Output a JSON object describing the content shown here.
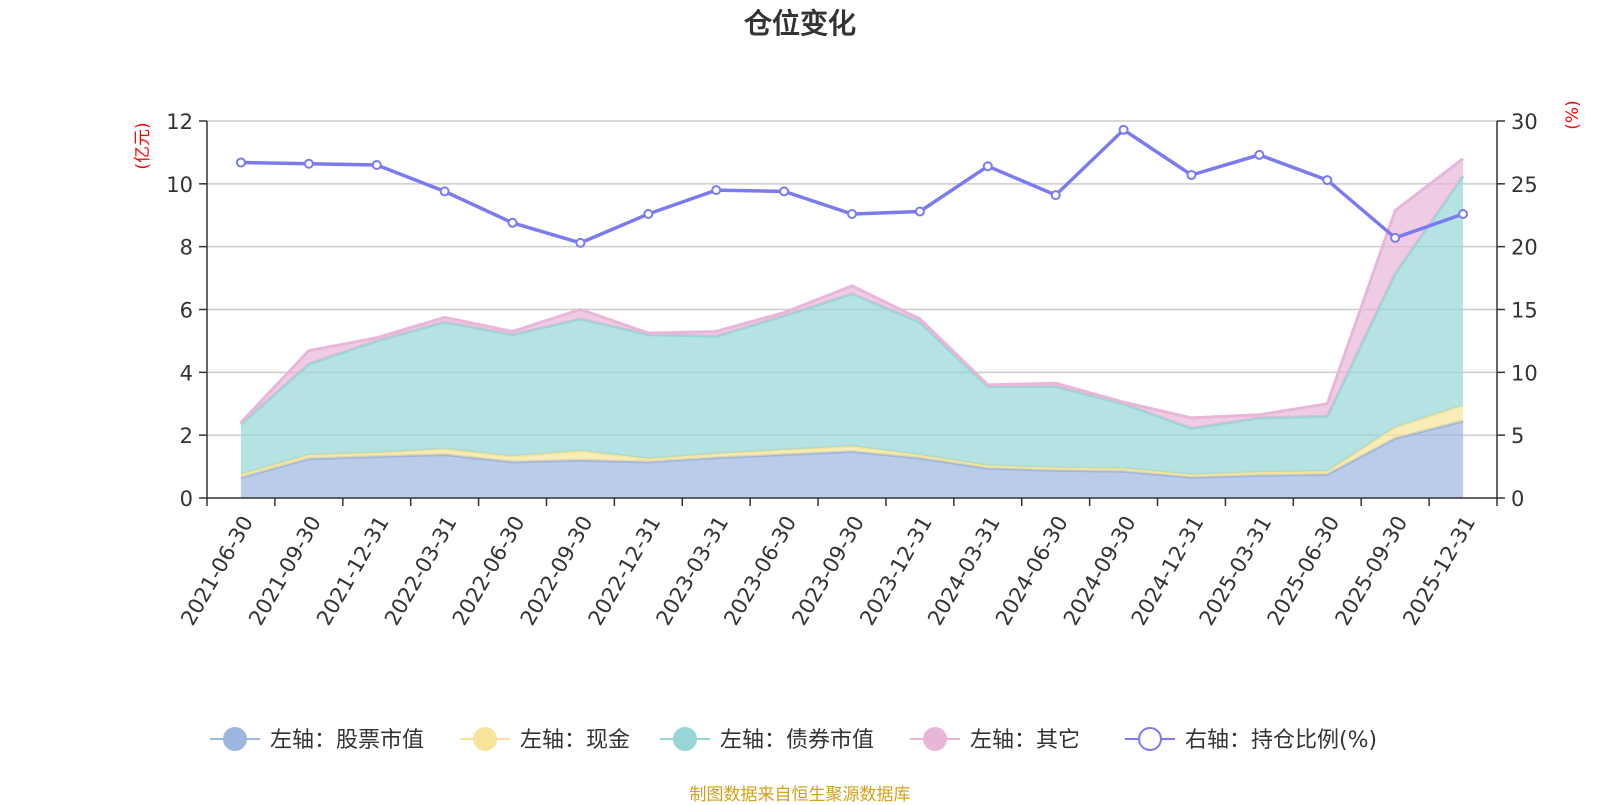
{
  "title": "仓位变化",
  "source_note": "制图数据来自恒生聚源数据库",
  "chart_data": {
    "type": "area",
    "title": "仓位变化",
    "categories": [
      "2021-06-30",
      "2021-09-30",
      "2021-12-31",
      "2022-03-31",
      "2022-06-30",
      "2022-09-30",
      "2022-12-31",
      "2023-03-31",
      "2023-06-30",
      "2023-09-30",
      "2023-12-31",
      "2024-03-31",
      "2024-06-30",
      "2024-09-30",
      "2024-12-31",
      "2025-03-31",
      "2025-06-30",
      "2025-09-30",
      "2025-12-31"
    ],
    "left_axis": {
      "unit_label": "(亿元)",
      "ylim": [
        0,
        12
      ],
      "ticks": [
        0,
        2,
        4,
        6,
        8,
        10,
        12
      ]
    },
    "right_axis": {
      "unit_label": "(%)",
      "ylim": [
        0,
        30
      ],
      "ticks": [
        0,
        5,
        10,
        15,
        20,
        25,
        30
      ]
    },
    "stacked_series": [
      {
        "name": "左轴：股票市值",
        "color": "#9db6e0",
        "values": [
          0.65,
          1.25,
          1.32,
          1.38,
          1.15,
          1.2,
          1.15,
          1.28,
          1.38,
          1.48,
          1.27,
          0.95,
          0.88,
          0.85,
          0.66,
          0.72,
          0.75,
          1.9,
          2.45
        ]
      },
      {
        "name": "左轴：现金",
        "color": "#f7e49a",
        "values": [
          0.1,
          0.12,
          0.12,
          0.18,
          0.18,
          0.3,
          0.1,
          0.13,
          0.15,
          0.17,
          0.1,
          0.08,
          0.08,
          0.09,
          0.08,
          0.1,
          0.1,
          0.35,
          0.5
        ]
      },
      {
        "name": "左轴：债券市值",
        "color": "#96d6d6",
        "values": [
          1.6,
          2.9,
          3.56,
          4.04,
          3.87,
          4.2,
          3.95,
          3.74,
          4.27,
          4.85,
          4.23,
          2.52,
          2.59,
          2.06,
          1.48,
          1.73,
          1.75,
          4.9,
          7.3
        ]
      },
      {
        "name": "左轴：其它",
        "color": "#e8b6d9",
        "values": [
          0.05,
          0.42,
          0.1,
          0.15,
          0.1,
          0.3,
          0.05,
          0.15,
          0.1,
          0.25,
          0.1,
          0.05,
          0.1,
          0.05,
          0.33,
          0.1,
          0.4,
          2.0,
          0.55
        ]
      }
    ],
    "line_series": {
      "name": "右轴：持仓比例(%)",
      "color": "#7b7bef",
      "values": [
        26.7,
        26.6,
        26.5,
        24.4,
        21.9,
        20.3,
        22.6,
        24.5,
        24.4,
        22.6,
        22.8,
        26.4,
        24.1,
        29.3,
        25.7,
        27.3,
        25.3,
        20.7,
        22.6
      ]
    }
  }
}
